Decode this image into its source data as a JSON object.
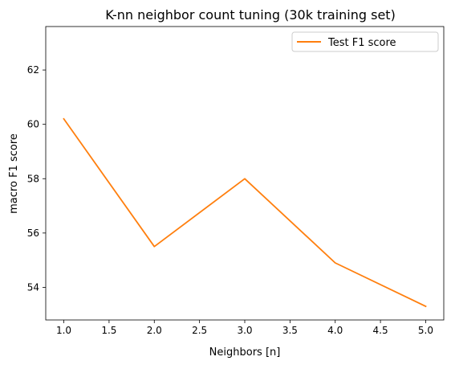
{
  "chart_data": {
    "type": "line",
    "title": "K-nn neighbor count tuning (30k training set)",
    "xlabel": "Neighbors [n]",
    "ylabel": "macro F1 score",
    "xlim": [
      0.8,
      5.2
    ],
    "ylim": [
      52.8,
      63.6
    ],
    "xticks": [
      1.0,
      1.5,
      2.0,
      2.5,
      3.0,
      3.5,
      4.0,
      4.5,
      5.0
    ],
    "xtick_labels": [
      "1.0",
      "1.5",
      "2.0",
      "2.5",
      "3.0",
      "3.5",
      "4.0",
      "4.5",
      "5.0"
    ],
    "yticks": [
      54,
      56,
      58,
      60,
      62
    ],
    "ytick_labels": [
      "54",
      "56",
      "58",
      "60",
      "62"
    ],
    "grid": false,
    "legend_position": "upper right",
    "series": [
      {
        "name": "Test F1 score",
        "color": "#ff7f0e",
        "x": [
          1,
          2,
          3,
          4,
          5
        ],
        "y": [
          60.2,
          55.5,
          58.0,
          54.9,
          53.3
        ]
      }
    ]
  }
}
